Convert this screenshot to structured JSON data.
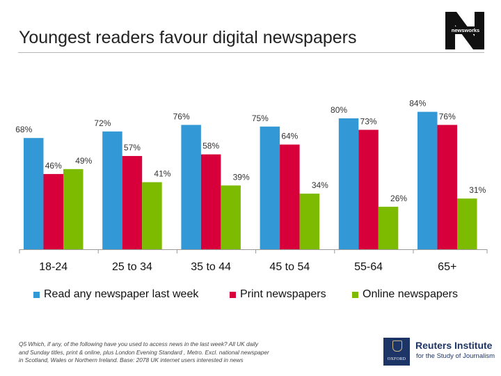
{
  "page": {
    "title": "Youngest readers favour digital newspapers",
    "logo_text": "newsworks",
    "footnote_lines": [
      "Q5 Which, if any, of the following have you used to access news in the last week? All UK daily",
      "and Sunday titles, print & online, plus London Evening Standard , Metro. Excl. national newspaper",
      "in  Scotland, Wales or Northern Ireland. Base: 2078 UK internet users interested in news"
    ],
    "oxford_text": "OXFORD",
    "reuters_title": "Reuters Institute",
    "reuters_subtitle": "for the Study of Journalism"
  },
  "colors": {
    "read_any": "#3399d6",
    "print": "#d8003b",
    "online": "#7dbb00",
    "axis": "#999999"
  },
  "chart_data": {
    "type": "bar",
    "title": "Youngest readers favour digital newspapers",
    "categories": [
      "18-24",
      "25 to 34",
      "35 to 44",
      "45 to 54",
      "55-64",
      "65+"
    ],
    "series": [
      {
        "name": "Read any newspaper last week",
        "values": [
          68,
          72,
          76,
          75,
          80,
          84
        ],
        "labels": [
          "68%",
          "72%",
          "76%",
          "75%",
          "80%",
          "84%"
        ]
      },
      {
        "name": "Print newspapers",
        "values": [
          46,
          57,
          58,
          64,
          73,
          76
        ],
        "labels": [
          "46%",
          "57%",
          "58%",
          "64%",
          "73%",
          "76%"
        ]
      },
      {
        "name": "Online newspapers",
        "values": [
          49,
          41,
          39,
          34,
          26,
          31
        ],
        "labels": [
          "49%",
          "41%",
          "39%",
          "34%",
          "26%",
          "31%"
        ]
      }
    ],
    "legend_position": "bottom",
    "grid": false,
    "y_axis_visible": false
  }
}
